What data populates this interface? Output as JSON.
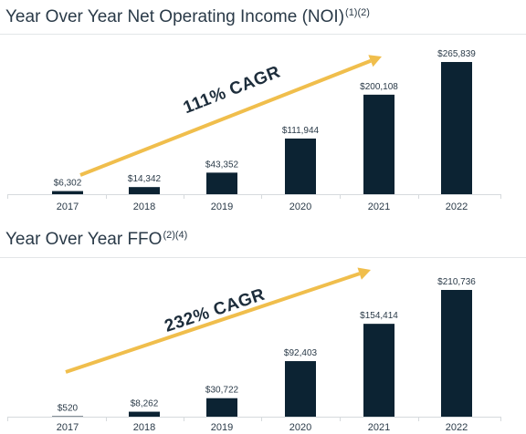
{
  "chart_data": [
    {
      "type": "bar",
      "title": "Year Over Year Net Operating Income (NOI)",
      "title_footnotes": "(1)(2)",
      "categories": [
        "2017",
        "2018",
        "2019",
        "2020",
        "2021",
        "2022"
      ],
      "values": [
        6302,
        14342,
        43352,
        111944,
        200108,
        265839
      ],
      "value_labels": [
        "$6,302",
        "$14,342",
        "$43,352",
        "$111,944",
        "$200,108",
        "$265,839"
      ],
      "annotation": "111% CAGR",
      "ylim": [
        0,
        265839
      ],
      "grid": false,
      "colors": {
        "bar": "#0c2333",
        "arrow": "#f0be4c",
        "axis": "#d6dadd"
      }
    },
    {
      "type": "bar",
      "title": "Year Over Year FFO",
      "title_footnotes": "(2)(4)",
      "categories": [
        "2017",
        "2018",
        "2019",
        "2020",
        "2021",
        "2022"
      ],
      "values": [
        520,
        8262,
        30722,
        92403,
        154414,
        210736
      ],
      "value_labels": [
        "$520",
        "$8,262",
        "$30,722",
        "$92,403",
        "$154,414",
        "$210,736"
      ],
      "annotation": "232% CAGR",
      "ylim": [
        0,
        210736
      ],
      "grid": false,
      "colors": {
        "bar": "#0c2333",
        "arrow": "#f0be4c",
        "axis": "#d6dadd"
      }
    }
  ]
}
